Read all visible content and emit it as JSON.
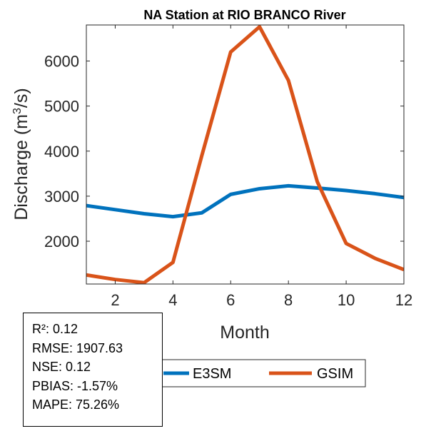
{
  "chart_data": {
    "type": "line",
    "title": "NA  Station at  RIO BRANCO  River",
    "xlabel": "Month",
    "ylabel_prefix": "Discharge (m",
    "ylabel_sup": "3",
    "ylabel_suffix": "/s)",
    "xlim": [
      1,
      12
    ],
    "ylim": [
      1050,
      6800
    ],
    "xticks": [
      2,
      4,
      6,
      8,
      10,
      12
    ],
    "yticks": [
      2000,
      3000,
      4000,
      5000,
      6000
    ],
    "x": [
      1,
      2,
      3,
      4,
      5,
      6,
      7,
      8,
      9,
      10,
      11,
      12
    ],
    "series": [
      {
        "name": "E3SM",
        "color": "#0072BD",
        "values": [
          2790,
          2700,
          2610,
          2545,
          2630,
          3040,
          3165,
          3230,
          3180,
          3125,
          3055,
          2970
        ]
      },
      {
        "name": "GSIM",
        "color": "#D95319",
        "values": [
          1250,
          1150,
          1080,
          1530,
          3900,
          6200,
          6760,
          5570,
          3320,
          1950,
          1620,
          1370
        ]
      }
    ],
    "grid": false,
    "legend": "bottom-center",
    "stats": [
      "R²: 0.12",
      "RMSE: 1907.63",
      "NSE: 0.12",
      "PBIAS: -1.57%",
      "MAPE: 75.26%"
    ]
  }
}
